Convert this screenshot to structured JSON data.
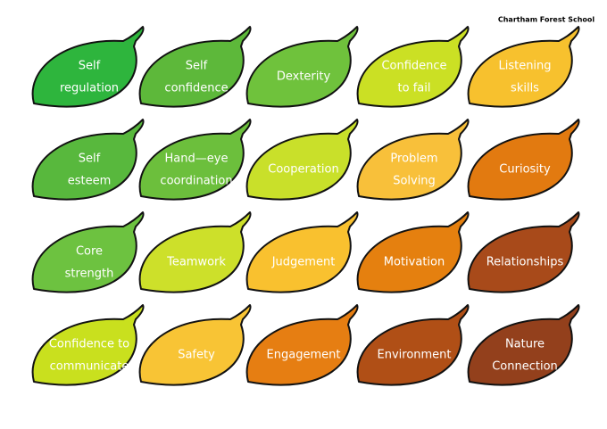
{
  "header": {
    "title": "Chartham Forest School"
  },
  "leaves": [
    {
      "lines": [
        "Self",
        "regulation"
      ],
      "color": "#2eb53d"
    },
    {
      "lines": [
        "Self",
        "confidence"
      ],
      "color": "#5db83a"
    },
    {
      "lines": [
        "Dexterity"
      ],
      "color": "#6fc23c"
    },
    {
      "lines": [
        "Confidence",
        "to fail"
      ],
      "color": "#cbe024"
    },
    {
      "lines": [
        "Listening",
        "skills"
      ],
      "color": "#f7c12e"
    },
    {
      "lines": [
        "Self",
        "esteem"
      ],
      "color": "#58b83d"
    },
    {
      "lines": [
        "Hand—eye",
        "coordination"
      ],
      "color": "#6cbf3c"
    },
    {
      "lines": [
        "Cooperation"
      ],
      "color": "#c9e02a"
    },
    {
      "lines": [
        "Problem",
        "Solving"
      ],
      "color": "#f8c03a"
    },
    {
      "lines": [
        "Curiosity"
      ],
      "color": "#e27a10"
    },
    {
      "lines": [
        "Core",
        "strength"
      ],
      "color": "#6dc240"
    },
    {
      "lines": [
        "Teamwork"
      ],
      "color": "#cde02a"
    },
    {
      "lines": [
        "Judgement"
      ],
      "color": "#f9c12f"
    },
    {
      "lines": [
        "Motivation"
      ],
      "color": "#e5800f"
    },
    {
      "lines": [
        "Relationships"
      ],
      "color": "#a84a1a"
    },
    {
      "lines": [
        "Confidence to",
        "communicate"
      ],
      "color": "#c9e01e"
    },
    {
      "lines": [
        "Safety"
      ],
      "color": "#f8c435"
    },
    {
      "lines": [
        "Engagement"
      ],
      "color": "#e67e12"
    },
    {
      "lines": [
        "Environment"
      ],
      "color": "#b04f16"
    },
    {
      "lines": [
        "Nature",
        "Connection"
      ],
      "color": "#93401c"
    }
  ]
}
